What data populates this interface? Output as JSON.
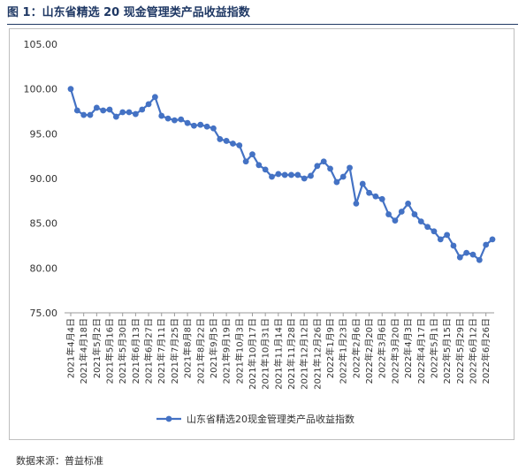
{
  "figure_title": "图 1：山东省精选 20 现金管理类产品收益指数",
  "source": "数据来源：普益标准",
  "colors": {
    "series": "#4472c4",
    "title": "#1f3864",
    "axis": "#bfbfbf"
  },
  "chart_data": {
    "type": "line",
    "title": "",
    "xlabel": "",
    "ylabel": "",
    "ylim": [
      75,
      105
    ],
    "yticks": [
      75,
      80,
      85,
      90,
      95,
      100,
      105
    ],
    "ytick_labels": [
      "75.00",
      "80.00",
      "85.00",
      "90.00",
      "95.00",
      "100.00",
      "105.00"
    ],
    "grid": false,
    "legend": "bottom",
    "x_tick_labels": [
      "2021年4月4日",
      "2021年4月18日",
      "2021年5月2日",
      "2021年5月16日",
      "2021年5月30日",
      "2021年6月13日",
      "2021年6月27日",
      "2021年7月11日",
      "2021年7月25日",
      "2021年8月8日",
      "2021年8月22日",
      "2021年9月5日",
      "2021年9月19日",
      "2021年10月3日",
      "2021年10月17日",
      "2021年10月31日",
      "2021年11月14日",
      "2021年11月28日",
      "2021年12月12日",
      "2021年12月26日",
      "2022年1月9日",
      "2022年1月23日",
      "2022年2月6日",
      "2022年2月20日",
      "2022年3月6日",
      "2022年3月20日",
      "2022年4月3日",
      "2022年4月17日",
      "2022年5月1日",
      "2022年5月15日",
      "2022年5月29日",
      "2022年6月12日",
      "2022年6月26日"
    ],
    "series": [
      {
        "name": "山东省精选20现金管理类产品收益指数",
        "values": [
          100.0,
          97.6,
          97.1,
          97.1,
          97.9,
          97.6,
          97.7,
          96.9,
          97.4,
          97.4,
          97.2,
          97.7,
          98.3,
          99.1,
          97.0,
          96.7,
          96.5,
          96.6,
          96.2,
          95.9,
          96.0,
          95.8,
          95.6,
          94.4,
          94.2,
          93.9,
          93.7,
          91.9,
          92.7,
          91.5,
          91.0,
          90.2,
          90.5,
          90.4,
          90.4,
          90.4,
          90.0,
          90.3,
          91.4,
          91.9,
          91.1,
          89.6,
          90.2,
          91.2,
          87.2,
          89.4,
          88.4,
          88.0,
          87.7,
          86.0,
          85.3,
          86.3,
          87.2,
          86.0,
          85.2,
          84.6,
          84.1,
          83.2,
          83.7,
          82.5,
          81.2,
          81.7,
          81.5,
          80.9,
          82.6,
          83.2
        ]
      }
    ]
  }
}
